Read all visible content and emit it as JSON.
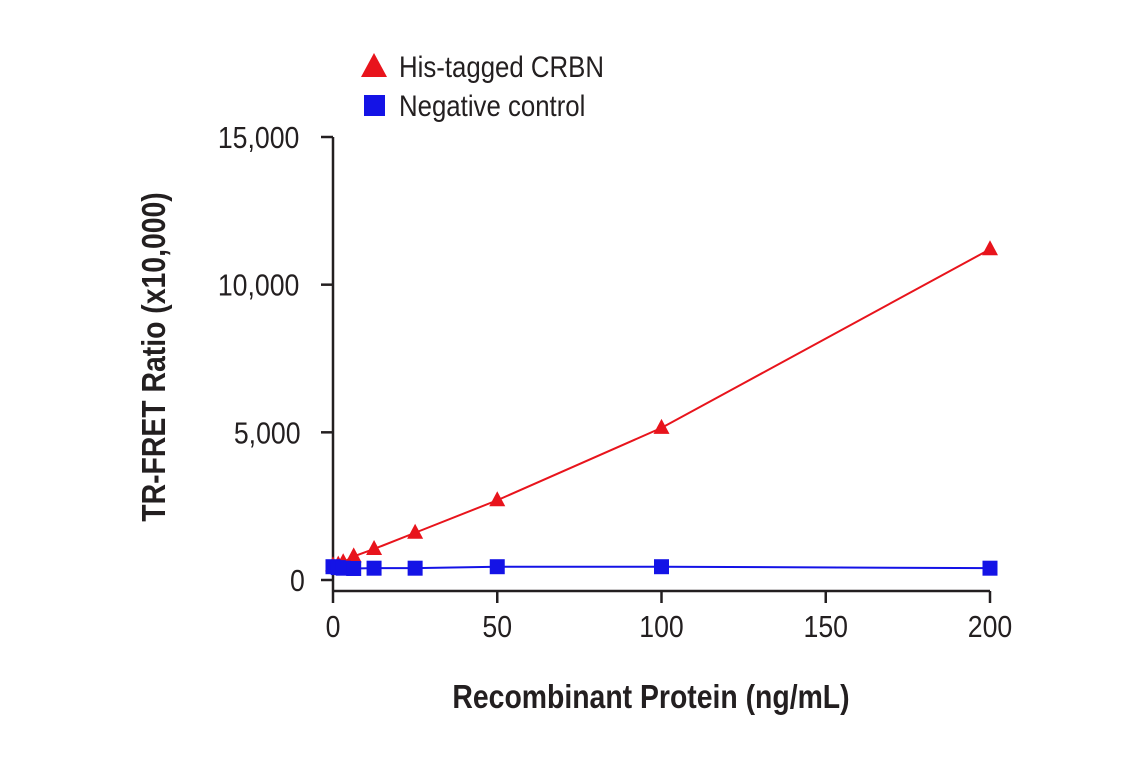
{
  "chart_data": {
    "type": "line",
    "title": "",
    "xlabel": "Recombinant Protein (ng/mL)",
    "ylabel": "TR-FRET Ratio (x10,000)",
    "xlim": [
      0,
      200
    ],
    "ylim": [
      0,
      15000
    ],
    "x_ticks": [
      0,
      50,
      100,
      150,
      200
    ],
    "x_tick_labels": [
      "0",
      "50",
      "100",
      "150",
      "200"
    ],
    "y_ticks": [
      0,
      5000,
      10000,
      15000
    ],
    "y_tick_labels": [
      "0",
      "5,000",
      "10,000",
      "15,000"
    ],
    "grid": false,
    "legend_position": "top-left",
    "series": [
      {
        "name": "His-tagged CRBN",
        "marker": "triangle",
        "color": "#e8141c",
        "x": [
          0,
          1.6,
          3.1,
          6.3,
          12.5,
          25,
          50,
          100,
          200
        ],
        "y": [
          500,
          520,
          600,
          800,
          1050,
          1600,
          2700,
          5150,
          11200
        ]
      },
      {
        "name": "Negative control",
        "marker": "square",
        "color": "#1413e6",
        "x": [
          0,
          1.6,
          3.1,
          6.3,
          12.5,
          25,
          50,
          100,
          200
        ],
        "y": [
          450,
          420,
          400,
          390,
          400,
          400,
          450,
          450,
          400
        ]
      }
    ]
  }
}
